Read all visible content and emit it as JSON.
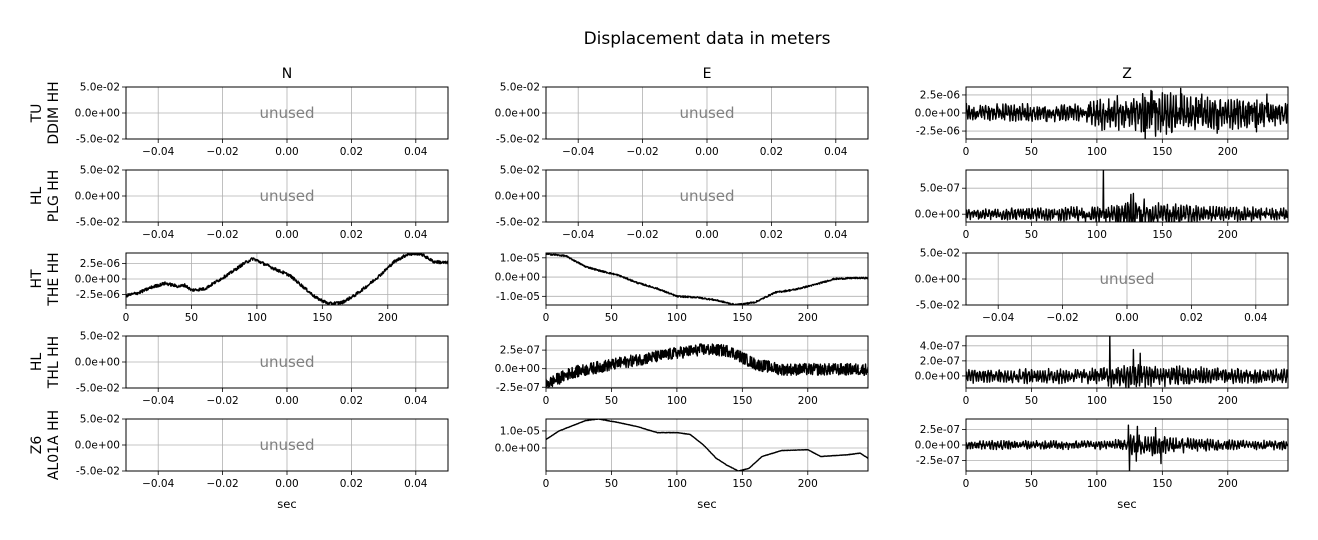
{
  "chart_data": {
    "type": "line",
    "title": "Displacement data in meters",
    "xlabel": "sec",
    "columns": [
      "N",
      "E",
      "Z"
    ],
    "rows": [
      {
        "label": [
          "TU",
          "DDIM HH"
        ]
      },
      {
        "label": [
          "HL",
          "PLG HH"
        ]
      },
      {
        "label": [
          "HT",
          "THE HH"
        ]
      },
      {
        "label": [
          "HL",
          "THL HH"
        ]
      },
      {
        "label": [
          "Z6",
          "AL01A HH"
        ]
      }
    ],
    "unused_text": "unused",
    "unused_axes": {
      "xlim": [
        -0.05,
        0.05
      ],
      "xticks": [
        -0.04,
        -0.02,
        0.0,
        0.02,
        0.04
      ],
      "xticklabels": [
        "−0.04",
        "−0.02",
        "0.00",
        "0.02",
        "0.04"
      ],
      "ylim": [
        -0.05,
        0.05
      ],
      "yticks": [
        0.05,
        0.0,
        -0.05
      ],
      "yticklabels": [
        "5.0e-02",
        "0.0e+00",
        "-5.0e-02"
      ]
    },
    "time_axes": {
      "xlim": [
        0,
        246
      ],
      "xticks": [
        0,
        50,
        100,
        150,
        200
      ],
      "xticklabels": [
        "0",
        "50",
        "100",
        "150",
        "200"
      ]
    },
    "panels": [
      {
        "row": 0,
        "col": "Z",
        "ylim": [
          -3.6e-06,
          3.6e-06
        ],
        "yticks": [
          2.5e-06,
          0,
          -2.5e-06
        ],
        "yticklabels": [
          "2.5e-06",
          "0.0e+00",
          "-2.5e-06"
        ],
        "envelope": [
          [
            0,
            1.2e-06
          ],
          [
            90,
            1.2e-06
          ],
          [
            95,
            2.2e-06
          ],
          [
            130,
            2.4e-06
          ],
          [
            136,
            3.6e-06
          ],
          [
            160,
            2.6e-06
          ],
          [
            200,
            2.2e-06
          ],
          [
            246,
            1.6e-06
          ]
        ],
        "spikes": [
          [
            104,
            -2.4e-06
          ],
          [
            137,
            -3.6e-06
          ],
          [
            142,
            3e-06
          ],
          [
            150,
            2.8e-06
          ],
          [
            164,
            3.4e-06
          ],
          [
            180,
            2.6e-06
          ],
          [
            192,
            -2.8e-06
          ],
          [
            222,
            -2.6e-06
          ],
          [
            230,
            2.6e-06
          ]
        ]
      },
      {
        "row": 1,
        "col": "Z",
        "ylim": [
          -1.5e-07,
          8.5e-07
        ],
        "yticks": [
          5e-07,
          0
        ],
        "yticklabels": [
          "5.0e-07",
          "0.0e+00"
        ],
        "envelope": [
          [
            0,
            1e-07
          ],
          [
            60,
            1.2e-07
          ],
          [
            100,
            1.5e-07
          ],
          [
            125,
            2.5e-07
          ],
          [
            140,
            2.2e-07
          ],
          [
            180,
            1.5e-07
          ],
          [
            246,
            1.2e-07
          ]
        ],
        "spikes": [
          [
            105,
            8.5e-07
          ],
          [
            107,
            -1.5e-07
          ],
          [
            126,
            3.8e-07
          ],
          [
            128,
            4e-07
          ],
          [
            134,
            -1.4e-07
          ],
          [
            136,
            2.9e-07
          ]
        ]
      },
      {
        "row": 2,
        "col": "N",
        "ylim": [
          -4.2e-06,
          4.2e-06
        ],
        "yticks": [
          2.5e-06,
          0,
          -2.5e-06
        ],
        "yticklabels": [
          "2.5e-06",
          "0.0e+00",
          "-2.5e-06"
        ],
        "points": [
          [
            0,
            -2.7e-06
          ],
          [
            10,
            -2.2e-06
          ],
          [
            20,
            -1.3e-06
          ],
          [
            30,
            -7e-07
          ],
          [
            40,
            -1.2e-06
          ],
          [
            45,
            -1e-06
          ],
          [
            50,
            -1.8e-06
          ],
          [
            60,
            -1.6e-06
          ],
          [
            70,
            -3e-07
          ],
          [
            80,
            1e-06
          ],
          [
            90,
            2.5e-06
          ],
          [
            97,
            3.3e-06
          ],
          [
            105,
            2.5e-06
          ],
          [
            115,
            1.5e-06
          ],
          [
            125,
            6e-07
          ],
          [
            135,
            -1.2e-06
          ],
          [
            145,
            -3e-06
          ],
          [
            155,
            -4e-06
          ],
          [
            165,
            -3.8e-06
          ],
          [
            175,
            -2.6e-06
          ],
          [
            185,
            -1e-06
          ],
          [
            195,
            8e-07
          ],
          [
            205,
            2.8e-06
          ],
          [
            215,
            4e-06
          ],
          [
            225,
            4.1e-06
          ],
          [
            235,
            2.8e-06
          ],
          [
            246,
            2.6e-06
          ]
        ],
        "noise": 2.5e-07
      },
      {
        "row": 2,
        "col": "E",
        "ylim": [
          -1.45e-05,
          1.25e-05
        ],
        "yticks": [
          1e-05,
          0,
          -1e-05
        ],
        "yticklabels": [
          "1.0e-05",
          "0.0e+00",
          "-1.0e-05"
        ],
        "points": [
          [
            0,
            1.2e-05
          ],
          [
            15,
            1.1e-05
          ],
          [
            30,
            5.5e-06
          ],
          [
            40,
            3.5e-06
          ],
          [
            55,
            1e-06
          ],
          [
            70,
            -3e-06
          ],
          [
            85,
            -6e-06
          ],
          [
            100,
            -1e-05
          ],
          [
            115,
            -1.05e-05
          ],
          [
            130,
            -1.2e-05
          ],
          [
            145,
            -1.45e-05
          ],
          [
            160,
            -1.3e-05
          ],
          [
            175,
            -8e-06
          ],
          [
            190,
            -6.5e-06
          ],
          [
            205,
            -4e-06
          ],
          [
            220,
            -1e-06
          ],
          [
            235,
            -5e-07
          ],
          [
            246,
            -5e-07
          ]
        ],
        "noise": 4e-07
      },
      {
        "row": 3,
        "col": "E",
        "ylim": [
          -2.6e-07,
          4.4e-07
        ],
        "yticks": [
          2.5e-07,
          0,
          -2.5e-07
        ],
        "yticklabels": [
          "2.5e-07",
          "0.0e+00",
          "-2.5e-07"
        ],
        "points": [
          [
            0,
            -2.1e-07
          ],
          [
            20,
            -5e-08
          ],
          [
            40,
            2e-08
          ],
          [
            70,
            1.2e-07
          ],
          [
            100,
            2.1e-07
          ],
          [
            120,
            2.6e-07
          ],
          [
            140,
            2.4e-07
          ],
          [
            160,
            6e-08
          ],
          [
            180,
            -1e-08
          ],
          [
            210,
            -1e-08
          ],
          [
            246,
            -1e-08
          ]
        ],
        "noise": 8e-08
      },
      {
        "row": 3,
        "col": "Z",
        "ylim": [
          -1.6e-07,
          5.3e-07
        ],
        "yticks": [
          4e-07,
          2e-07,
          0
        ],
        "yticklabels": [
          "4.0e-07",
          "2.0e-07",
          "0.0e+00"
        ],
        "envelope": [
          [
            0,
            9e-08
          ],
          [
            100,
            1e-07
          ],
          [
            110,
            1.5e-07
          ],
          [
            150,
            1.3e-07
          ],
          [
            200,
            1e-07
          ],
          [
            246,
            9e-08
          ]
        ],
        "spikes": [
          [
            110,
            5.3e-07
          ],
          [
            111,
            -1.6e-07
          ],
          [
            128,
            3.5e-07
          ],
          [
            130,
            -1.4e-07
          ],
          [
            133,
            3e-07
          ],
          [
            137,
            -1.5e-07
          ]
        ]
      },
      {
        "row": 4,
        "col": "E",
        "ylim": [
          -1.35e-05,
          1.7e-05
        ],
        "yticks": [
          1e-05,
          0
        ],
        "yticklabels": [
          "1.0e-05",
          "0.0e+00"
        ],
        "points": [
          [
            0,
            5e-06
          ],
          [
            10,
            1e-05
          ],
          [
            20,
            1.3e-05
          ],
          [
            30,
            1.6e-05
          ],
          [
            40,
            1.7e-05
          ],
          [
            55,
            1.5e-05
          ],
          [
            70,
            1.25e-05
          ],
          [
            85,
            9e-06
          ],
          [
            100,
            9e-06
          ],
          [
            110,
            8e-06
          ],
          [
            120,
            2e-06
          ],
          [
            130,
            -6e-06
          ],
          [
            138,
            -1e-05
          ],
          [
            147,
            -1.35e-05
          ],
          [
            155,
            -1.2e-05
          ],
          [
            165,
            -5e-06
          ],
          [
            180,
            -1.5e-06
          ],
          [
            200,
            -1e-06
          ],
          [
            210,
            -5e-06
          ],
          [
            230,
            -4e-06
          ],
          [
            240,
            -3e-06
          ],
          [
            246,
            -6e-06
          ]
        ],
        "noise": 1e-07
      },
      {
        "row": 4,
        "col": "Z",
        "ylim": [
          -4.2e-07,
          4.2e-07
        ],
        "yticks": [
          2.5e-07,
          0,
          -2.5e-07
        ],
        "yticklabels": [
          "2.5e-07",
          "0.0e+00",
          "-2.5e-07"
        ],
        "envelope": [
          [
            0,
            7e-08
          ],
          [
            100,
            7e-08
          ],
          [
            122,
            1e-07
          ],
          [
            128,
            1.8e-07
          ],
          [
            150,
            1.5e-07
          ],
          [
            180,
            9e-08
          ],
          [
            246,
            7e-08
          ]
        ],
        "spikes": [
          [
            124,
            3.2e-07
          ],
          [
            125,
            -4.2e-07
          ],
          [
            130,
            -2.6e-07
          ],
          [
            131,
            3e-07
          ],
          [
            145,
            2.8e-07
          ],
          [
            149,
            -3e-07
          ]
        ]
      }
    ],
    "unused_panels": [
      [
        0,
        "N"
      ],
      [
        0,
        "E"
      ],
      [
        1,
        "N"
      ],
      [
        1,
        "E"
      ],
      [
        2,
        "Z"
      ],
      [
        3,
        "N"
      ],
      [
        4,
        "N"
      ]
    ],
    "line_color": "#000000",
    "grid": true,
    "legend": "none"
  }
}
